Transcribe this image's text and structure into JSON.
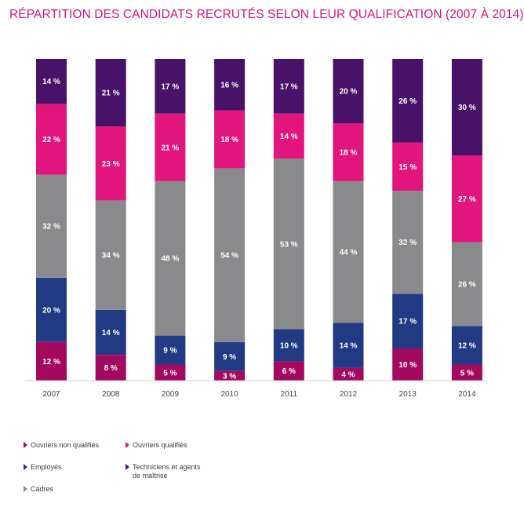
{
  "chart_data": {
    "type": "bar",
    "stacked": true,
    "title": "RÉPARTITION DES CANDIDATS RECRUTÉS SELON LEUR QUALIFICATION (2007 À 2014)",
    "categories": [
      "2007",
      "2008",
      "2009",
      "2010",
      "2011",
      "2012",
      "2013",
      "2014"
    ],
    "value_suffix": " %",
    "ylim": [
      0,
      100
    ],
    "grid": false,
    "legend_position": "bottom-left",
    "series": [
      {
        "name": "Ouvriers non qualifiés",
        "color": "#a3095f",
        "values": [
          12,
          8,
          5,
          3,
          6,
          4,
          10,
          5
        ]
      },
      {
        "name": "Employés",
        "color": "#213a83",
        "values": [
          20,
          14,
          9,
          9,
          10,
          14,
          17,
          12
        ]
      },
      {
        "name": "Cadres",
        "color": "#8a8a8d",
        "values": [
          32,
          34,
          48,
          54,
          53,
          44,
          32,
          26
        ]
      },
      {
        "name": "Ouvriers qualifiés",
        "color": "#e2157e",
        "values": [
          22,
          23,
          21,
          18,
          14,
          18,
          15,
          27
        ]
      },
      {
        "name": "Techniciens et agents de maîtrise",
        "color": "#481269",
        "values": [
          14,
          21,
          17,
          16,
          17,
          20,
          26,
          30
        ]
      }
    ]
  }
}
